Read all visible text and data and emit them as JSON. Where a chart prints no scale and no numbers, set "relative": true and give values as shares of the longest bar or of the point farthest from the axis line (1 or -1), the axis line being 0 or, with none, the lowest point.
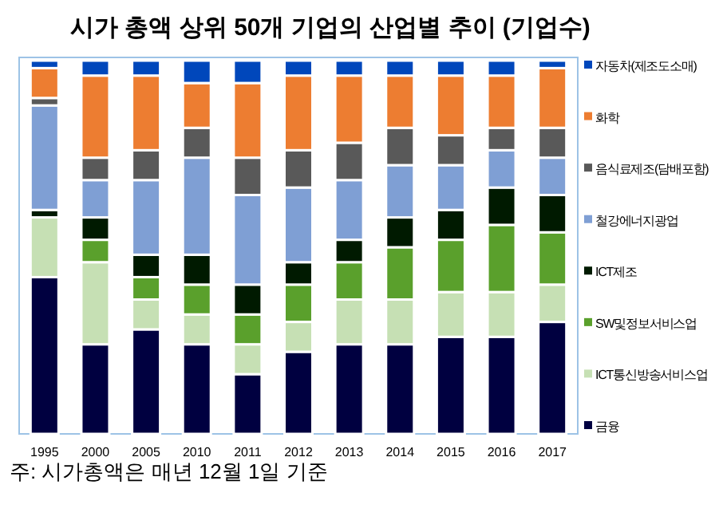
{
  "chart_data": {
    "type": "bar",
    "title": "시가 총액 상위 50개 기업의 산업별 추이 (기업수)",
    "categories": [
      "1995",
      "2000",
      "2005",
      "2010",
      "2011",
      "2012",
      "2013",
      "2014",
      "2015",
      "2016",
      "2017"
    ],
    "stacked": true,
    "relative": true,
    "legend": "right",
    "annotations": [
      "주: 시가총액은 매년 12월 1일 기준"
    ],
    "series": [
      {
        "name": "금융",
        "color": "#000040",
        "values": [
          0.42,
          0.24,
          0.28,
          0.24,
          0.16,
          0.22,
          0.24,
          0.24,
          0.26,
          0.26,
          0.3
        ]
      },
      {
        "name": "ICT통신방송서비스업",
        "color": "#c6e0b4",
        "values": [
          0.16,
          0.22,
          0.08,
          0.08,
          0.08,
          0.08,
          0.12,
          0.12,
          0.12,
          0.12,
          0.1
        ]
      },
      {
        "name": "SW및정보서비스업",
        "color": "#5aa02c",
        "values": [
          0,
          0.06,
          0.06,
          0.08,
          0.08,
          0.1,
          0.1,
          0.14,
          0.14,
          0.18,
          0.14
        ]
      },
      {
        "name": "ICT제조",
        "color": "#001a00",
        "values": [
          0.02,
          0.06,
          0.06,
          0.08,
          0.08,
          0.06,
          0.06,
          0.08,
          0.08,
          0.1,
          0.1
        ]
      },
      {
        "name": "철강에너지광업",
        "color": "#7f9fd4",
        "values": [
          0.28,
          0.1,
          0.2,
          0.26,
          0.24,
          0.2,
          0.16,
          0.14,
          0.12,
          0.1,
          0.1
        ]
      },
      {
        "name": "음식료제조(담배포함)",
        "color": "#595959",
        "values": [
          0.02,
          0.06,
          0.08,
          0.08,
          0.1,
          0.1,
          0.1,
          0.1,
          0.08,
          0.06,
          0.08
        ]
      },
      {
        "name": "화학",
        "color": "#ed7d31",
        "values": [
          0.08,
          0.22,
          0.2,
          0.12,
          0.2,
          0.2,
          0.18,
          0.14,
          0.16,
          0.14,
          0.16
        ]
      },
      {
        "name": "자동차(제조도소매)",
        "color": "#0047bb",
        "values": [
          0.02,
          0.04,
          0.04,
          0.06,
          0.06,
          0.04,
          0.04,
          0.04,
          0.04,
          0.04,
          0.02
        ]
      }
    ]
  }
}
